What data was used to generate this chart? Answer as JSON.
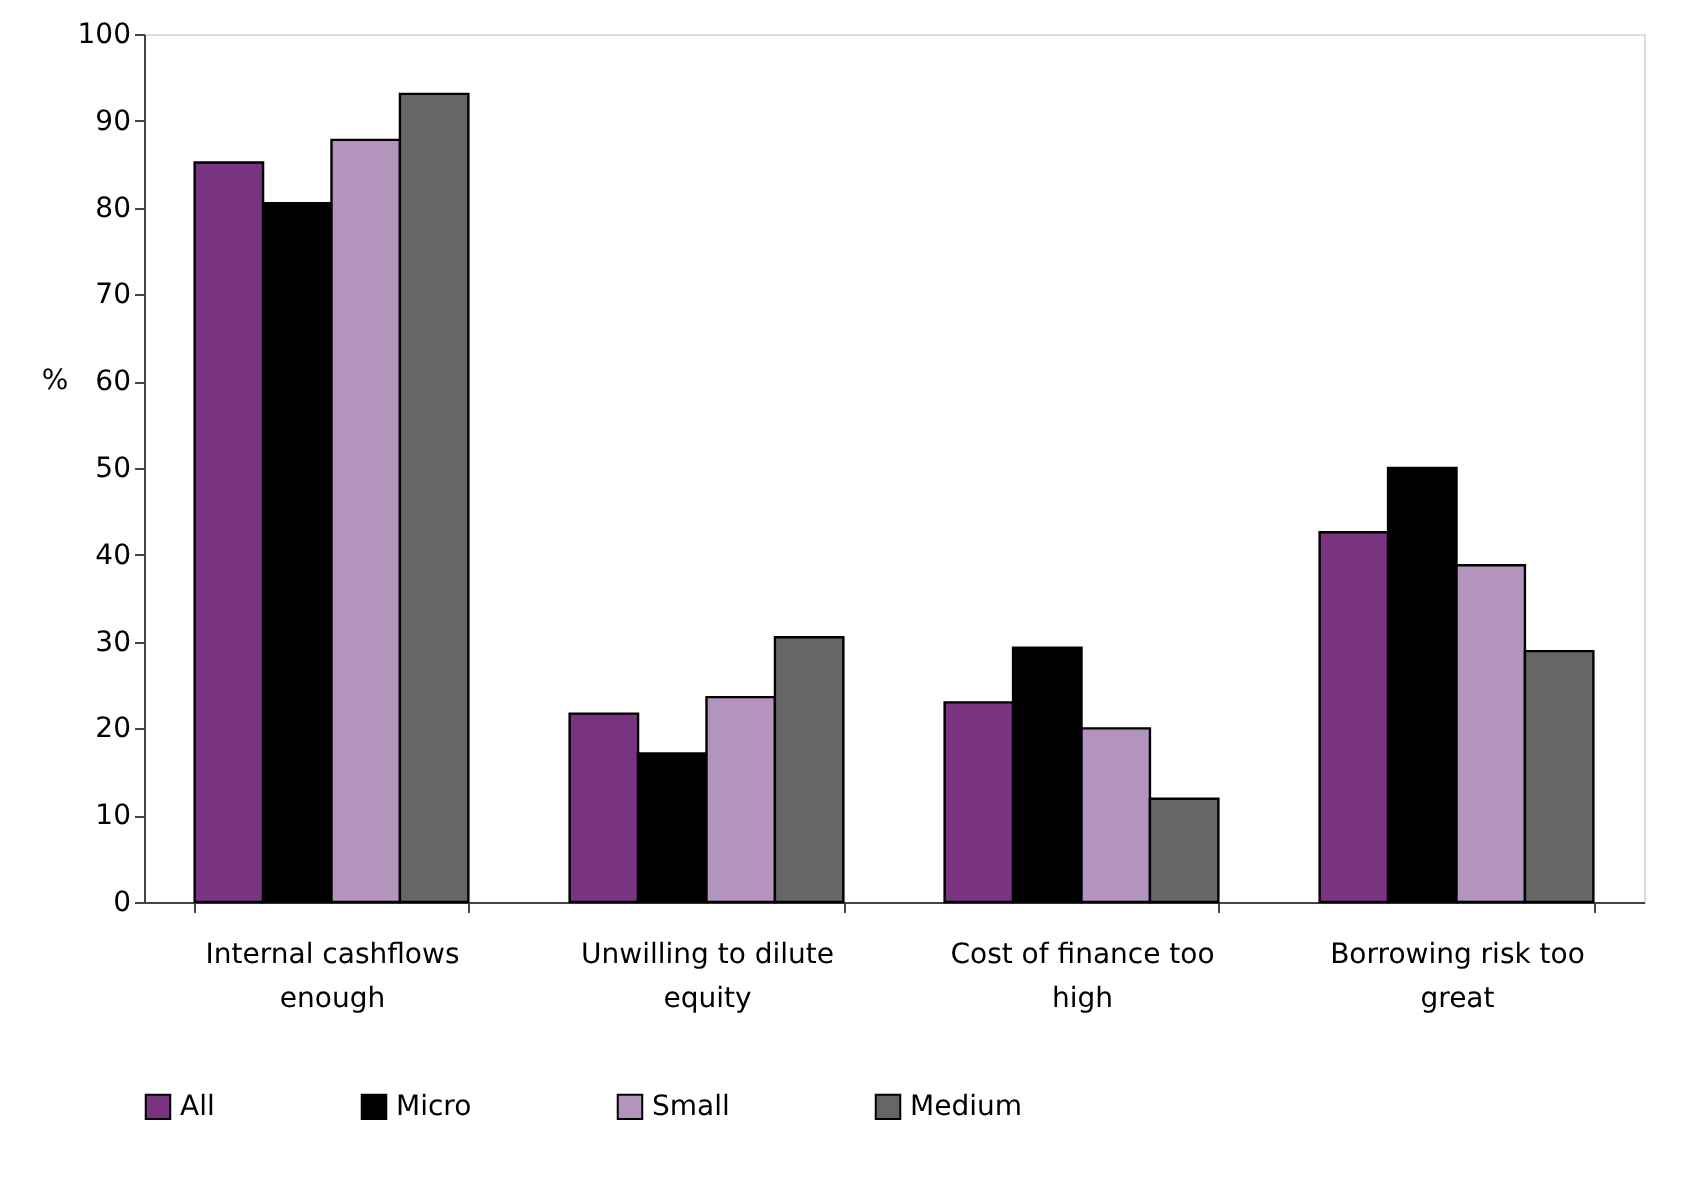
{
  "chart_data": {
    "type": "bar",
    "ylabel": "%",
    "categories": [
      "Internal cashflows enough",
      "Unwilling to dilute equity",
      "Cost of finance too high",
      "Borrowing risk too great"
    ],
    "series": [
      {
        "name": "All",
        "color": "#7a3380",
        "values": [
          85.2,
          21.7,
          23.0,
          42.6
        ]
      },
      {
        "name": "Micro",
        "color": "#000000",
        "values": [
          80.5,
          17.1,
          29.3,
          50.0
        ]
      },
      {
        "name": "Small",
        "color": "#b294bc",
        "values": [
          87.8,
          23.6,
          20.0,
          38.8
        ]
      },
      {
        "name": "Medium",
        "color": "#666666",
        "values": [
          93.1,
          30.5,
          11.9,
          28.9
        ]
      }
    ],
    "ylim": [
      0,
      100
    ],
    "yticks": [
      0,
      10,
      20,
      30,
      40,
      50,
      60,
      70,
      80,
      90,
      100
    ],
    "grid": false,
    "legend": "bottom"
  }
}
